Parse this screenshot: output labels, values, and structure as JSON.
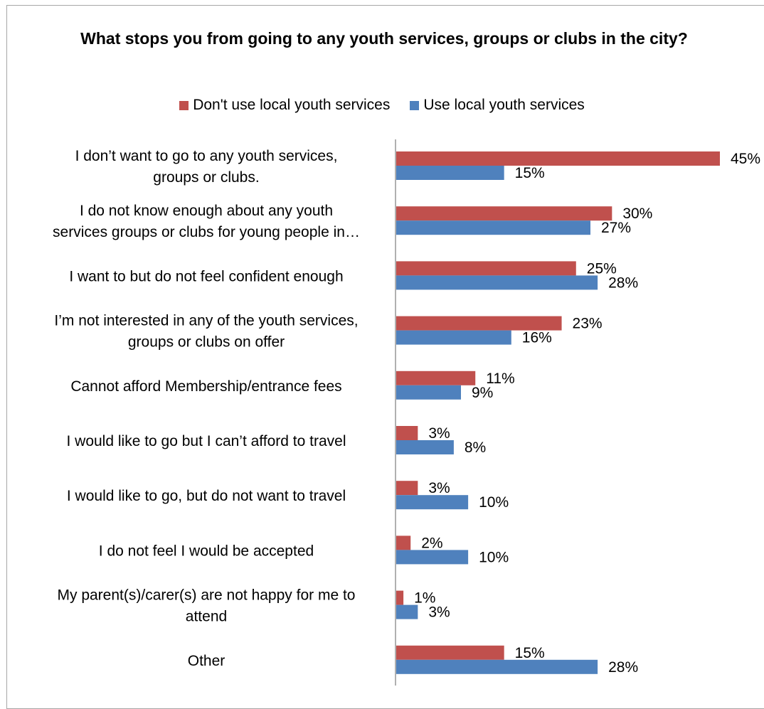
{
  "chart_data": {
    "type": "bar",
    "orientation": "horizontal",
    "title": "What stops you from going to any youth services, groups or clubs in the city?",
    "categories": [
      [
        "I don’t want to go to any youth services,",
        "groups or clubs."
      ],
      [
        "I do not know enough about any youth",
        "services groups or clubs for young people in…"
      ],
      [
        "I want to but do not feel confident enough"
      ],
      [
        "I’m not interested in any of the youth services,",
        "groups or clubs on offer"
      ],
      [
        "Cannot afford Membership/entrance fees"
      ],
      [
        "I would like to go but I can’t afford to travel"
      ],
      [
        "I would like to go, but do not want to travel"
      ],
      [
        "I do not feel I would be accepted"
      ],
      [
        "My parent(s)/carer(s) are not happy for me to",
        "attend"
      ],
      [
        "Other"
      ]
    ],
    "series": [
      {
        "name": "Don't use local youth services",
        "color": "#c0504d",
        "values": [
          45,
          30,
          25,
          23,
          11,
          3,
          3,
          2,
          1,
          15
        ]
      },
      {
        "name": "Use local youth services",
        "color": "#4f81bd",
        "values": [
          15,
          27,
          28,
          16,
          9,
          8,
          10,
          10,
          3,
          28
        ]
      }
    ],
    "value_format": "percent",
    "xlim": [
      0,
      45
    ],
    "legend_position": "top",
    "grid": false
  }
}
